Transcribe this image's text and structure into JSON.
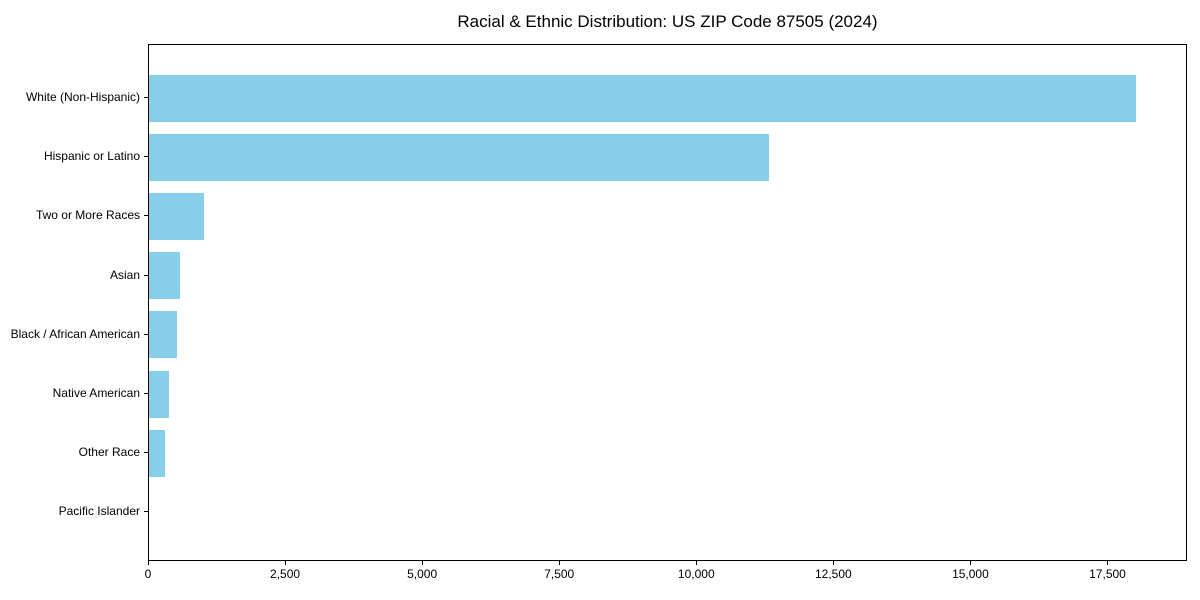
{
  "page": {
    "background": "#ffffff"
  },
  "chart_data": {
    "type": "bar",
    "orientation": "horizontal",
    "title": "Racial & Ethnic Distribution: US ZIP Code 87505 (2024)",
    "categories": [
      "White (Non-Hispanic)",
      "Hispanic or Latino",
      "Two or More Races",
      "Asian",
      "Black / African American",
      "Native American",
      "Other Race",
      "Pacific Islander"
    ],
    "values": [
      18000,
      11300,
      1000,
      560,
      510,
      360,
      300,
      0
    ],
    "xlabel": "",
    "ylabel": "",
    "xlim": [
      0,
      18950
    ],
    "x_ticks": [
      0,
      2500,
      5000,
      7500,
      10000,
      12500,
      15000,
      17500
    ],
    "x_tick_labels": [
      "0",
      "2,500",
      "5,000",
      "7,500",
      "10,000",
      "12,500",
      "15,000",
      "17,500"
    ],
    "bar_color": "#87CEEB",
    "grid": false,
    "legend": null,
    "plot_border": "#000000"
  },
  "colors": {
    "bar": "#87CEEB",
    "text": "#000000",
    "spine": "#000000",
    "background": "#ffffff"
  }
}
